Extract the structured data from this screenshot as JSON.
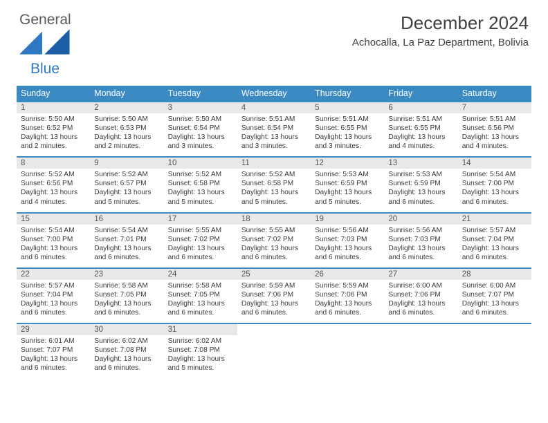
{
  "logo": {
    "general": "General",
    "blue": "Blue"
  },
  "title": "December 2024",
  "location": "Achocalla, La Paz Department, Bolivia",
  "colors": {
    "header_bg": "#3b8ac4",
    "header_text": "#ffffff",
    "daynum_bg": "#e8e8e8",
    "border": "#3b8ac4",
    "logo_gray": "#58595b",
    "logo_blue": "#2f78c4"
  },
  "font": {
    "body_size": 10.2,
    "daynum_size": 11.5,
    "th_size": 12.5,
    "title_size": 26,
    "location_size": 15
  },
  "dayNames": [
    "Sunday",
    "Monday",
    "Tuesday",
    "Wednesday",
    "Thursday",
    "Friday",
    "Saturday"
  ],
  "weeks": [
    [
      {
        "n": "1",
        "r": "5:50 AM",
        "s": "6:52 PM",
        "d": "13 hours and 2 minutes."
      },
      {
        "n": "2",
        "r": "5:50 AM",
        "s": "6:53 PM",
        "d": "13 hours and 2 minutes."
      },
      {
        "n": "3",
        "r": "5:50 AM",
        "s": "6:54 PM",
        "d": "13 hours and 3 minutes."
      },
      {
        "n": "4",
        "r": "5:51 AM",
        "s": "6:54 PM",
        "d": "13 hours and 3 minutes."
      },
      {
        "n": "5",
        "r": "5:51 AM",
        "s": "6:55 PM",
        "d": "13 hours and 3 minutes."
      },
      {
        "n": "6",
        "r": "5:51 AM",
        "s": "6:55 PM",
        "d": "13 hours and 4 minutes."
      },
      {
        "n": "7",
        "r": "5:51 AM",
        "s": "6:56 PM",
        "d": "13 hours and 4 minutes."
      }
    ],
    [
      {
        "n": "8",
        "r": "5:52 AM",
        "s": "6:56 PM",
        "d": "13 hours and 4 minutes."
      },
      {
        "n": "9",
        "r": "5:52 AM",
        "s": "6:57 PM",
        "d": "13 hours and 5 minutes."
      },
      {
        "n": "10",
        "r": "5:52 AM",
        "s": "6:58 PM",
        "d": "13 hours and 5 minutes."
      },
      {
        "n": "11",
        "r": "5:52 AM",
        "s": "6:58 PM",
        "d": "13 hours and 5 minutes."
      },
      {
        "n": "12",
        "r": "5:53 AM",
        "s": "6:59 PM",
        "d": "13 hours and 5 minutes."
      },
      {
        "n": "13",
        "r": "5:53 AM",
        "s": "6:59 PM",
        "d": "13 hours and 6 minutes."
      },
      {
        "n": "14",
        "r": "5:54 AM",
        "s": "7:00 PM",
        "d": "13 hours and 6 minutes."
      }
    ],
    [
      {
        "n": "15",
        "r": "5:54 AM",
        "s": "7:00 PM",
        "d": "13 hours and 6 minutes."
      },
      {
        "n": "16",
        "r": "5:54 AM",
        "s": "7:01 PM",
        "d": "13 hours and 6 minutes."
      },
      {
        "n": "17",
        "r": "5:55 AM",
        "s": "7:02 PM",
        "d": "13 hours and 6 minutes."
      },
      {
        "n": "18",
        "r": "5:55 AM",
        "s": "7:02 PM",
        "d": "13 hours and 6 minutes."
      },
      {
        "n": "19",
        "r": "5:56 AM",
        "s": "7:03 PM",
        "d": "13 hours and 6 minutes."
      },
      {
        "n": "20",
        "r": "5:56 AM",
        "s": "7:03 PM",
        "d": "13 hours and 6 minutes."
      },
      {
        "n": "21",
        "r": "5:57 AM",
        "s": "7:04 PM",
        "d": "13 hours and 6 minutes."
      }
    ],
    [
      {
        "n": "22",
        "r": "5:57 AM",
        "s": "7:04 PM",
        "d": "13 hours and 6 minutes."
      },
      {
        "n": "23",
        "r": "5:58 AM",
        "s": "7:05 PM",
        "d": "13 hours and 6 minutes."
      },
      {
        "n": "24",
        "r": "5:58 AM",
        "s": "7:05 PM",
        "d": "13 hours and 6 minutes."
      },
      {
        "n": "25",
        "r": "5:59 AM",
        "s": "7:06 PM",
        "d": "13 hours and 6 minutes."
      },
      {
        "n": "26",
        "r": "5:59 AM",
        "s": "7:06 PM",
        "d": "13 hours and 6 minutes."
      },
      {
        "n": "27",
        "r": "6:00 AM",
        "s": "7:06 PM",
        "d": "13 hours and 6 minutes."
      },
      {
        "n": "28",
        "r": "6:00 AM",
        "s": "7:07 PM",
        "d": "13 hours and 6 minutes."
      }
    ],
    [
      {
        "n": "29",
        "r": "6:01 AM",
        "s": "7:07 PM",
        "d": "13 hours and 6 minutes."
      },
      {
        "n": "30",
        "r": "6:02 AM",
        "s": "7:08 PM",
        "d": "13 hours and 6 minutes."
      },
      {
        "n": "31",
        "r": "6:02 AM",
        "s": "7:08 PM",
        "d": "13 hours and 5 minutes."
      },
      null,
      null,
      null,
      null
    ]
  ],
  "labels": {
    "sunrise": "Sunrise:",
    "sunset": "Sunset:",
    "daylight": "Daylight:"
  }
}
